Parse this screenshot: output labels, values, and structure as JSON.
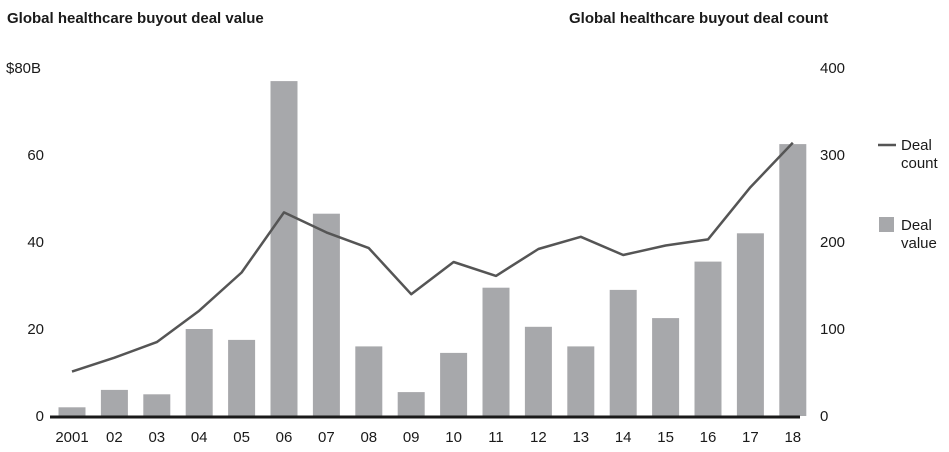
{
  "titles": {
    "left": "Global healthcare buyout deal value",
    "right": "Global healthcare buyout deal count"
  },
  "chart_data": {
    "type": "bar",
    "categories": [
      "2001",
      "02",
      "03",
      "04",
      "05",
      "06",
      "07",
      "08",
      "09",
      "10",
      "11",
      "12",
      "13",
      "14",
      "15",
      "16",
      "17",
      "18"
    ],
    "series": [
      {
        "name": "Deal value",
        "type": "bar",
        "axis": "left",
        "color": "#a7a8ab",
        "values": [
          2,
          6,
          5,
          20,
          17.5,
          77,
          46.5,
          16,
          5.5,
          14.5,
          29.5,
          20.5,
          16,
          29,
          22.5,
          35.5,
          42,
          62.5
        ]
      },
      {
        "name": "Deal count",
        "type": "line",
        "axis": "right",
        "color": "#555555",
        "values": [
          51,
          67,
          85,
          121,
          165,
          234,
          211,
          193,
          140,
          177,
          161,
          192,
          206,
          185,
          196,
          203,
          263,
          314
        ]
      }
    ],
    "y_left": {
      "ticks": [
        "0",
        "20",
        "40",
        "60",
        "$80B"
      ],
      "tick_values": [
        0,
        20,
        40,
        60,
        80
      ],
      "ylim": [
        0,
        80
      ]
    },
    "y_right": {
      "ticks": [
        "0",
        "100",
        "200",
        "300",
        "400"
      ],
      "tick_values": [
        0,
        100,
        200,
        300,
        400
      ],
      "ylim": [
        0,
        400
      ]
    },
    "legend": {
      "position": "right",
      "items": [
        {
          "series": "Deal count",
          "lines": [
            "Deal",
            "count"
          ],
          "marker": "line"
        },
        {
          "series": "Deal value",
          "lines": [
            "Deal",
            "value"
          ],
          "marker": "square"
        }
      ]
    },
    "grid": false
  }
}
